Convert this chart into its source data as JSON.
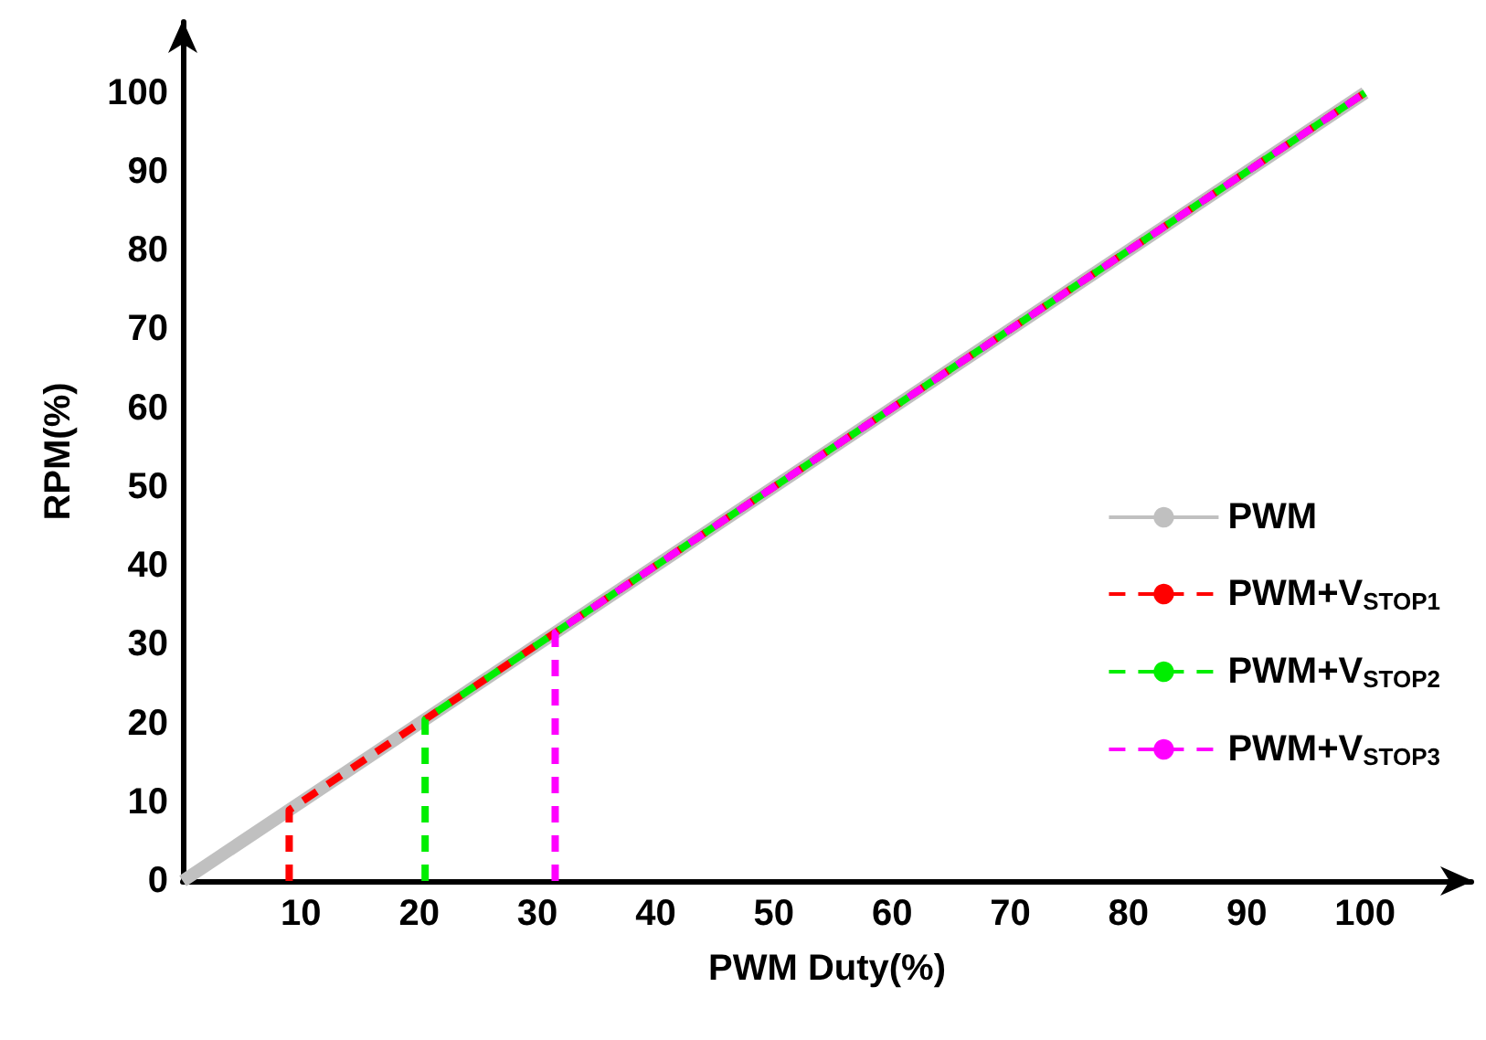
{
  "chart_data": {
    "type": "line",
    "xlabel": "PWM Duty(%)",
    "ylabel": "RPM(%)",
    "xlim": [
      0,
      109
    ],
    "ylim": [
      0,
      109
    ],
    "xticks": [
      10,
      20,
      30,
      40,
      50,
      60,
      70,
      80,
      90,
      100
    ],
    "yticks": [
      0,
      10,
      20,
      30,
      40,
      50,
      60,
      70,
      80,
      90,
      100
    ],
    "grid": false,
    "legend": "right",
    "marker": "none",
    "series": [
      {
        "name": "PWM",
        "color": "#c0c0c0",
        "line_style": "solid",
        "x": [
          0,
          100
        ],
        "values": [
          0,
          100
        ]
      },
      {
        "name": "PWM+V$_{STOP1}$",
        "color": "#ff0000",
        "line_style": "dashed",
        "x": [
          9,
          9,
          100
        ],
        "values": [
          0,
          9,
          100
        ]
      },
      {
        "name": "PWM+V$_{STOP2}$",
        "color": "#00ee00",
        "line_style": "dashed",
        "x": [
          20.5,
          20.5,
          100
        ],
        "values": [
          0,
          20.5,
          100
        ]
      },
      {
        "name": "PWM+V$_{STOP3}$",
        "color": "#ff00ff",
        "line_style": "dashed",
        "x": [
          31.5,
          31.5,
          100
        ],
        "values": [
          0,
          31.5,
          100
        ]
      }
    ]
  }
}
